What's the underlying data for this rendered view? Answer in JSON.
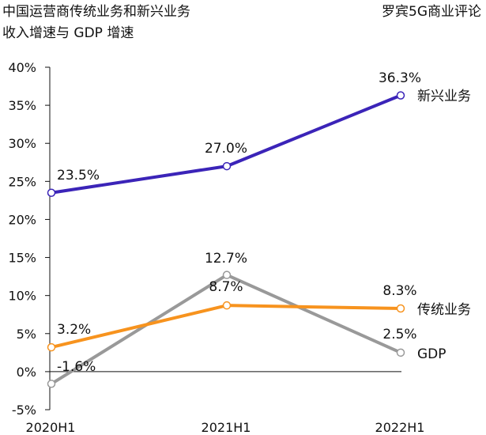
{
  "header": {
    "title_line1": "中国运营商传统业务和新兴业务",
    "title_line2": "收入增速与 GDP 增速",
    "brand": "罗宾5G商业评论"
  },
  "chart_data": {
    "type": "line",
    "title": "中国运营商传统业务和新兴业务收入增速与 GDP 增速",
    "categories": [
      "2020H1",
      "2021H1",
      "2022H1"
    ],
    "y_ticks": [
      "40%",
      "35%",
      "30%",
      "25%",
      "20%",
      "15%",
      "10%",
      "5%",
      "0%",
      "-5%"
    ],
    "ylim": [
      -5,
      40
    ],
    "xlabel": "",
    "ylabel": "",
    "grid": false,
    "series": [
      {
        "name": "新兴业务",
        "values": [
          23.5,
          27.0,
          36.3
        ],
        "labels": [
          "23.5%",
          "27.0%",
          "36.3%"
        ],
        "color": "#3b24b8"
      },
      {
        "name": "传统业务",
        "values": [
          3.2,
          8.7,
          8.3
        ],
        "labels": [
          "3.2%",
          "8.7%",
          "8.3%"
        ],
        "color": "#f7931e"
      },
      {
        "name": "GDP",
        "values": [
          -1.6,
          12.7,
          2.5
        ],
        "labels": [
          "-1.6%",
          "12.7%",
          "2.5%"
        ],
        "color": "#999999"
      }
    ]
  }
}
